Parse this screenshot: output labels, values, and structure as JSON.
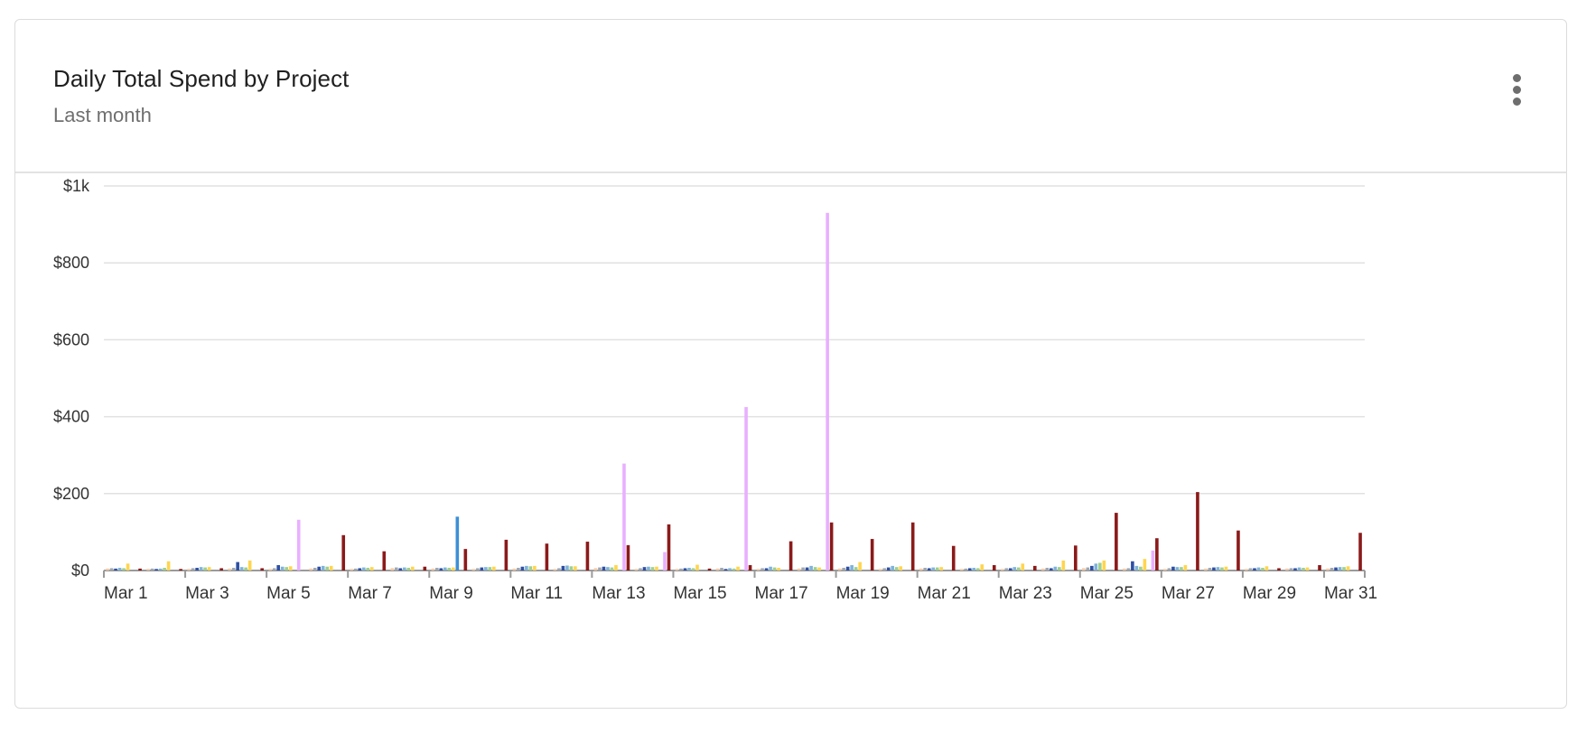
{
  "card": {
    "title": "Daily Total Spend by Project",
    "subtitle": "Last month",
    "menu_icon": "more-vertical-icon"
  },
  "chart_data": {
    "type": "bar",
    "title": "Daily Total Spend by Project",
    "subtitle": "Last month",
    "xlabel": "",
    "ylabel": "",
    "ylim": [
      0,
      1000
    ],
    "y_ticks": [
      0,
      200,
      400,
      600,
      800,
      1000
    ],
    "y_tick_labels": [
      "$0",
      "$200",
      "$400",
      "$600",
      "$800",
      "$1k"
    ],
    "x_tick_labels": [
      "Mar 1",
      "Mar 3",
      "Mar 5",
      "Mar 7",
      "Mar 9",
      "Mar 11",
      "Mar 13",
      "Mar 15",
      "Mar 17",
      "Mar 19",
      "Mar 21",
      "Mar 23",
      "Mar 25",
      "Mar 27",
      "Mar 29",
      "Mar 31"
    ],
    "grid": true,
    "legend": "none",
    "categories": [
      "Mar 1",
      "Mar 2",
      "Mar 3",
      "Mar 4",
      "Mar 5",
      "Mar 6",
      "Mar 7",
      "Mar 8",
      "Mar 9",
      "Mar 10",
      "Mar 11",
      "Mar 12",
      "Mar 13",
      "Mar 14",
      "Mar 15",
      "Mar 16",
      "Mar 17",
      "Mar 18",
      "Mar 19",
      "Mar 20",
      "Mar 21",
      "Mar 22",
      "Mar 23",
      "Mar 24",
      "Mar 25",
      "Mar 26",
      "Mar 27",
      "Mar 28",
      "Mar 29",
      "Mar 30",
      "Mar 31"
    ],
    "series": [
      {
        "color": "#f4c7a3",
        "values": [
          5,
          4,
          4,
          5,
          4,
          5,
          4,
          6,
          5,
          4,
          5,
          4,
          6,
          4,
          4,
          5,
          4,
          5,
          5,
          4,
          5,
          4,
          4,
          5,
          6,
          5,
          4,
          5,
          4,
          5,
          5
        ]
      },
      {
        "color": "#9ea7b3",
        "values": [
          6,
          5,
          6,
          7,
          6,
          7,
          5,
          8,
          7,
          6,
          7,
          6,
          8,
          6,
          5,
          7,
          6,
          8,
          7,
          6,
          7,
          5,
          6,
          7,
          8,
          6,
          6,
          7,
          6,
          6,
          7
        ]
      },
      {
        "color": "#2e4fa3",
        "values": [
          5,
          4,
          7,
          22,
          14,
          10,
          6,
          6,
          6,
          8,
          10,
          12,
          10,
          9,
          6,
          4,
          6,
          8,
          10,
          8,
          6,
          6,
          6,
          6,
          12,
          24,
          10,
          8,
          6,
          6,
          8
        ]
      },
      {
        "color": "#7fb3d8",
        "values": [
          7,
          5,
          9,
          9,
          10,
          12,
          8,
          8,
          8,
          9,
          12,
          13,
          9,
          10,
          7,
          6,
          10,
          12,
          14,
          12,
          8,
          7,
          9,
          10,
          18,
          12,
          9,
          9,
          8,
          8,
          9
        ]
      },
      {
        "color": "#9fcf8f",
        "values": [
          6,
          7,
          8,
          8,
          9,
          10,
          7,
          7,
          7,
          9,
          11,
          11,
          8,
          9,
          6,
          5,
          8,
          9,
          9,
          9,
          8,
          6,
          8,
          9,
          20,
          10,
          9,
          8,
          7,
          7,
          9
        ]
      },
      {
        "color": "#ffd54f",
        "values": [
          18,
          24,
          9,
          26,
          11,
          12,
          9,
          10,
          8,
          10,
          12,
          11,
          14,
          10,
          15,
          10,
          7,
          8,
          22,
          11,
          9,
          16,
          18,
          26,
          26,
          30,
          14,
          10,
          11,
          8,
          11
        ]
      },
      {
        "color": "#3d8fd6",
        "values": [
          0,
          0,
          0,
          0,
          0,
          0,
          0,
          0,
          140,
          0,
          0,
          0,
          0,
          0,
          0,
          0,
          0,
          0,
          0,
          0,
          0,
          0,
          0,
          0,
          0,
          0,
          0,
          0,
          0,
          0,
          0
        ]
      },
      {
        "color": "#e8b0ff",
        "values": [
          0,
          0,
          0,
          0,
          132,
          0,
          0,
          0,
          0,
          0,
          0,
          0,
          278,
          48,
          0,
          425,
          0,
          930,
          0,
          0,
          0,
          0,
          0,
          0,
          0,
          52,
          0,
          0,
          0,
          0,
          0
        ]
      },
      {
        "color": "#8b1a1a",
        "values": [
          5,
          4,
          6,
          6,
          0,
          92,
          50,
          10,
          56,
          80,
          70,
          75,
          66,
          120,
          5,
          14,
          76,
          125,
          82,
          125,
          64,
          14,
          12,
          65,
          150,
          84,
          204,
          104,
          6,
          14,
          98
        ]
      }
    ]
  }
}
